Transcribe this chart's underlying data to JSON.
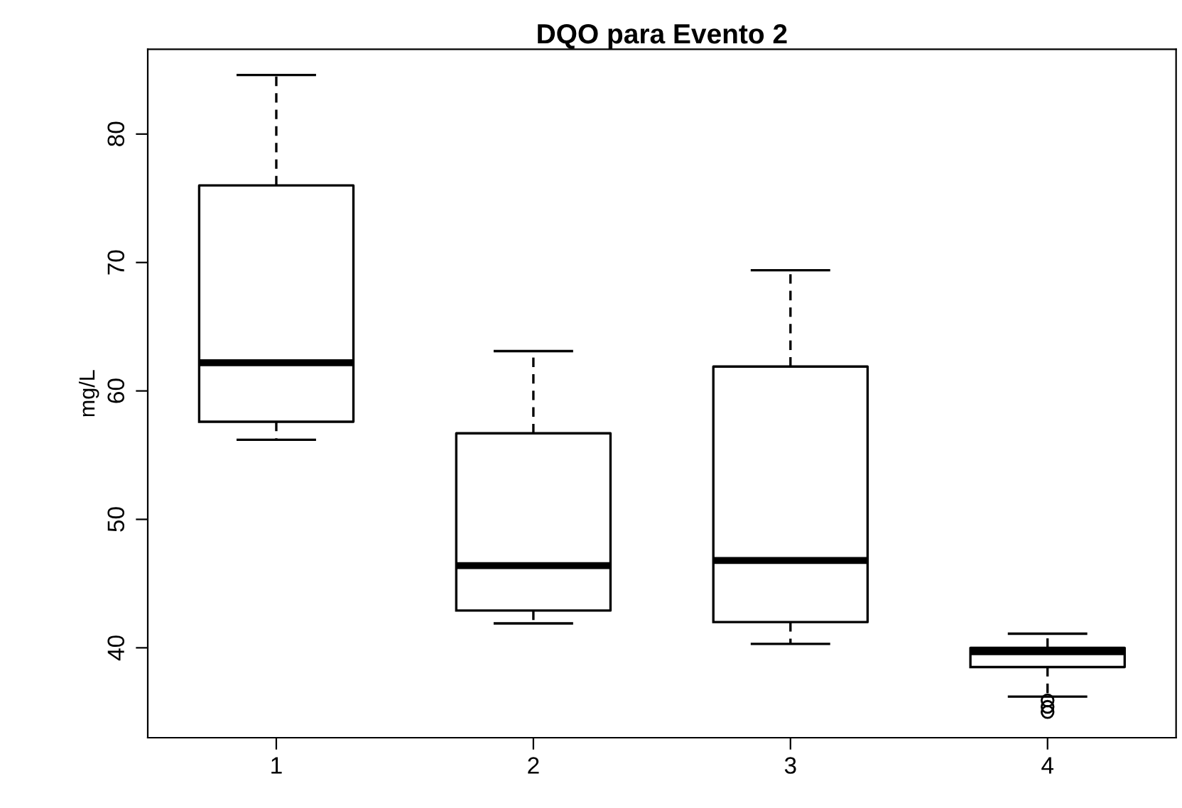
{
  "chart_data": {
    "type": "box",
    "title": "DQO para Evento 2",
    "ylabel": "mg/L",
    "categories": [
      "1",
      "2",
      "3",
      "4"
    ],
    "boxes": [
      {
        "low": 56.2,
        "q1": 57.6,
        "median": 62.2,
        "q3": 76.0,
        "high": 84.6
      },
      {
        "low": 41.9,
        "q1": 42.9,
        "median": 46.4,
        "q3": 56.7,
        "high": 63.1
      },
      {
        "low": 40.3,
        "q1": 42.0,
        "median": 46.8,
        "q3": 61.9,
        "high": 69.4
      },
      {
        "low": 36.2,
        "q1": 38.5,
        "median": 39.7,
        "q3": 40.0,
        "high": 41.1,
        "outliers": [
          35.9,
          35.4,
          35.0
        ]
      }
    ],
    "ylim": [
      33.0,
      86.6
    ],
    "yticks": [
      40,
      50,
      60,
      70,
      80
    ],
    "grid": false
  }
}
